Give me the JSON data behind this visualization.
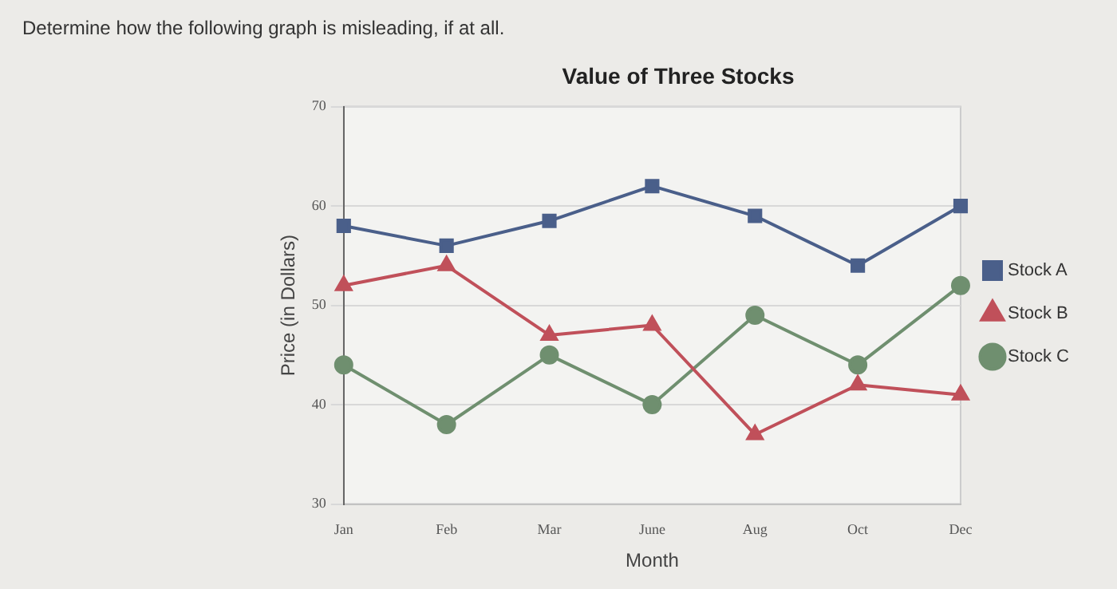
{
  "chart_data": {
    "type": "line",
    "title": "Value of Three Stocks",
    "xlabel": "Month",
    "ylabel": "Price (in Dollars)",
    "annotations": [
      "Determine how the following graph is misleading, if at all."
    ],
    "categories": [
      "Jan",
      "Feb",
      "Mar",
      "June",
      "Aug",
      "Oct",
      "Dec"
    ],
    "series": [
      {
        "name": "Stock A",
        "color": "#4a5f8a",
        "marker": "square",
        "values": [
          58,
          56,
          58.5,
          62,
          59,
          54,
          60
        ]
      },
      {
        "name": "Stock B",
        "color": "#c0505a",
        "marker": "triangle",
        "values": [
          52,
          54,
          47,
          48,
          37,
          42,
          41
        ]
      },
      {
        "name": "Stock C",
        "color": "#6f8f6f",
        "marker": "circle",
        "values": [
          44,
          38,
          45,
          40,
          49,
          44,
          52
        ]
      }
    ],
    "ylim": [
      30,
      70
    ],
    "yticks": [
      30,
      40,
      50,
      60,
      70
    ],
    "grid": "y",
    "legend": "right",
    "line_style": "solid"
  }
}
